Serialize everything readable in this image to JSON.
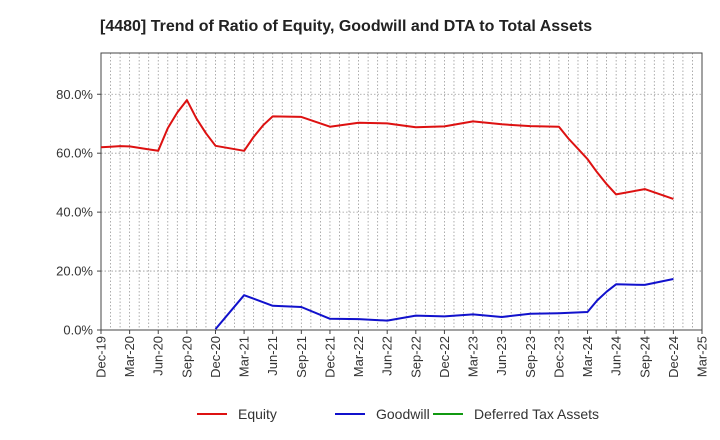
{
  "chart_data": {
    "type": "line",
    "title": "[4480]  Trend of Ratio of Equity, Goodwill and DTA to Total Assets",
    "xlabel": "",
    "ylabel": "",
    "x_ticks": [
      "Dec-19",
      "Mar-20",
      "Jun-20",
      "Sep-20",
      "Dec-20",
      "Mar-21",
      "Jun-21",
      "Sep-21",
      "Dec-21",
      "Mar-22",
      "Jun-22",
      "Sep-22",
      "Dec-22",
      "Mar-23",
      "Jun-23",
      "Sep-23",
      "Dec-23",
      "Mar-24",
      "Jun-24",
      "Sep-24",
      "Dec-24",
      "Mar-25"
    ],
    "y_ticks": [
      "0.0%",
      "20.0%",
      "40.0%",
      "60.0%",
      "80.0%"
    ],
    "y_tick_values": [
      0,
      20,
      40,
      60,
      80
    ],
    "ylim": [
      0,
      94
    ],
    "xlim": [
      "Dec-19",
      "Mar-25"
    ],
    "grid": true,
    "legend_position": "bottom",
    "series": [
      {
        "name": "Equity",
        "color": "#dd1111",
        "points": [
          [
            "Dec-19",
            62.0
          ],
          [
            "Jan-20",
            62.2
          ],
          [
            "Feb-20",
            62.4
          ],
          [
            "Mar-20",
            62.3
          ],
          [
            "Apr-20",
            61.8
          ],
          [
            "May-20",
            61.3
          ],
          [
            "Jun-20",
            60.8
          ],
          [
            "Jul-20",
            68.5
          ],
          [
            "Aug-20",
            73.8
          ],
          [
            "Sep-20",
            78.0
          ],
          [
            "Oct-20",
            71.8
          ],
          [
            "Nov-20",
            66.8
          ],
          [
            "Dec-20",
            62.5
          ],
          [
            "Mar-21",
            60.8
          ],
          [
            "Apr-21",
            65.5
          ],
          [
            "May-21",
            69.5
          ],
          [
            "Jun-21",
            72.5
          ],
          [
            "Sep-21",
            72.3
          ],
          [
            "Dec-21",
            69.0
          ],
          [
            "Mar-22",
            70.3
          ],
          [
            "Jun-22",
            70.1
          ],
          [
            "Sep-22",
            68.8
          ],
          [
            "Dec-22",
            69.1
          ],
          [
            "Mar-23",
            70.8
          ],
          [
            "Jun-23",
            69.8
          ],
          [
            "Sep-23",
            69.2
          ],
          [
            "Dec-23",
            69.0
          ],
          [
            "Jan-24",
            65.0
          ],
          [
            "Feb-24",
            61.5
          ],
          [
            "Mar-24",
            58.0
          ],
          [
            "Apr-24",
            53.5
          ],
          [
            "May-24",
            49.5
          ],
          [
            "Jun-24",
            46.0
          ],
          [
            "Sep-24",
            47.8
          ],
          [
            "Dec-24",
            44.5
          ]
        ]
      },
      {
        "name": "Goodwill",
        "color": "#1111cc",
        "points": [
          [
            "Dec-20",
            0.3
          ],
          [
            "Mar-21",
            11.8
          ],
          [
            "Jun-21",
            8.2
          ],
          [
            "Sep-21",
            7.8
          ],
          [
            "Dec-21",
            3.8
          ],
          [
            "Mar-22",
            3.7
          ],
          [
            "Jun-22",
            3.2
          ],
          [
            "Sep-22",
            4.9
          ],
          [
            "Dec-22",
            4.6
          ],
          [
            "Mar-23",
            5.3
          ],
          [
            "Jun-23",
            4.4
          ],
          [
            "Sep-23",
            5.5
          ],
          [
            "Dec-23",
            5.7
          ],
          [
            "Mar-24",
            6.1
          ],
          [
            "Apr-24",
            10.0
          ],
          [
            "May-24",
            13.0
          ],
          [
            "Jun-24",
            15.5
          ],
          [
            "Sep-24",
            15.3
          ],
          [
            "Dec-24",
            17.3
          ]
        ]
      },
      {
        "name": "Deferred Tax Assets",
        "color": "#119911",
        "points": []
      }
    ]
  }
}
